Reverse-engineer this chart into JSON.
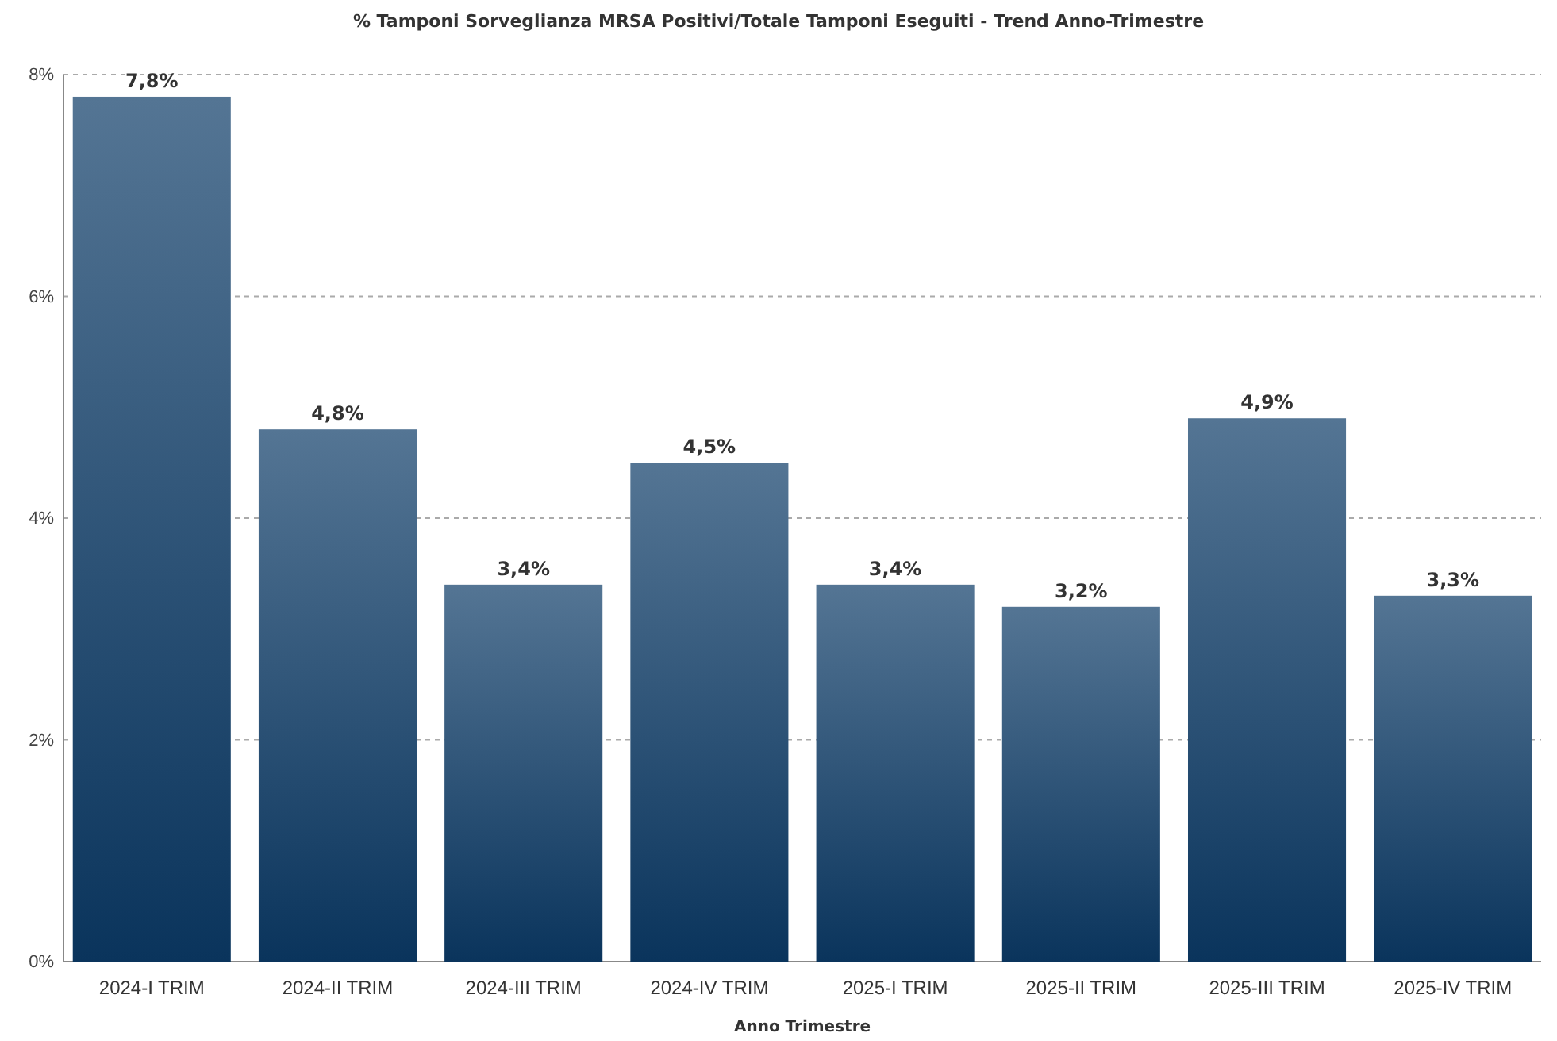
{
  "chart_data": {
    "type": "bar",
    "title": "% Tamponi Sorveglianza MRSA Positivi/Totale Tamponi Eseguiti - Trend Anno-Trimestre",
    "xlabel": "Anno Trimestre",
    "categories": [
      "2024-I TRIM",
      "2024-II TRIM",
      "2024-III TRIM",
      "2024-IV TRIM",
      "2025-I TRIM",
      "2025-II TRIM",
      "2025-III TRIM",
      "2025-IV TRIM"
    ],
    "values": [
      7.8,
      4.8,
      3.4,
      4.5,
      3.4,
      3.2,
      4.9,
      3.3
    ],
    "value_labels": [
      "7,8%",
      "4,8%",
      "3,4%",
      "4,5%",
      "3,4%",
      "3,2%",
      "4,9%",
      "3,3%"
    ],
    "color": "#0b3a66",
    "ylim": [
      0,
      8
    ],
    "yticks": [
      {
        "value": 0,
        "label": "0%"
      },
      {
        "value": 2,
        "label": "2%"
      },
      {
        "value": 4,
        "label": "4%"
      },
      {
        "value": 6,
        "label": "6%"
      },
      {
        "value": 8,
        "label": "8%"
      }
    ],
    "grid": "y"
  }
}
